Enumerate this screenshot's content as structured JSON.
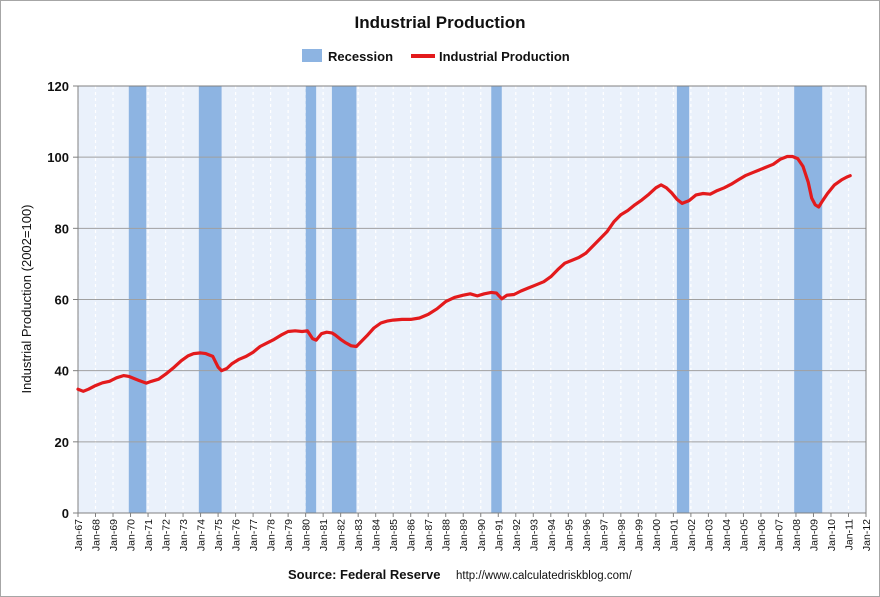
{
  "chart_data": {
    "type": "line",
    "title": "Industrial Production",
    "ylabel": "Industrial Production (2002=100)",
    "source": "Source: Federal Reserve",
    "url": "http://www.calculatedriskblog.com/",
    "ylim": [
      0,
      120
    ],
    "yticks": [
      0,
      20,
      40,
      60,
      80,
      100,
      120
    ],
    "xlim": [
      1967.0,
      2012.0
    ],
    "xticks": [
      "Jan-67",
      "Jan-68",
      "Jan-69",
      "Jan-70",
      "Jan-71",
      "Jan-72",
      "Jan-73",
      "Jan-74",
      "Jan-75",
      "Jan-76",
      "Jan-77",
      "Jan-78",
      "Jan-79",
      "Jan-80",
      "Jan-81",
      "Jan-82",
      "Jan-83",
      "Jan-84",
      "Jan-85",
      "Jan-86",
      "Jan-87",
      "Jan-88",
      "Jan-89",
      "Jan-90",
      "Jan-91",
      "Jan-92",
      "Jan-93",
      "Jan-94",
      "Jan-95",
      "Jan-96",
      "Jan-97",
      "Jan-98",
      "Jan-99",
      "Jan-00",
      "Jan-01",
      "Jan-02",
      "Jan-03",
      "Jan-04",
      "Jan-05",
      "Jan-06",
      "Jan-07",
      "Jan-08",
      "Jan-09",
      "Jan-10",
      "Jan-11",
      "Jan-12"
    ],
    "grid": true,
    "legend": "top-center",
    "colors": {
      "recession": "#8db4e2",
      "line": "#e31a1c",
      "plot_bg": "#eaf1fb"
    },
    "series": [
      {
        "name": "Industrial Production",
        "x": [
          1967.0,
          1967.3,
          1967.6,
          1968.0,
          1968.4,
          1968.8,
          1969.2,
          1969.6,
          1969.9,
          1970.2,
          1970.5,
          1970.9,
          1971.2,
          1971.6,
          1972.0,
          1972.5,
          1972.9,
          1973.3,
          1973.6,
          1974.0,
          1974.3,
          1974.7,
          1975.0,
          1975.2,
          1975.5,
          1975.8,
          1976.2,
          1976.6,
          1977.0,
          1977.4,
          1977.8,
          1978.2,
          1978.6,
          1979.0,
          1979.4,
          1979.8,
          1980.1,
          1980.4,
          1980.6,
          1980.9,
          1981.2,
          1981.5,
          1981.7,
          1982.0,
          1982.3,
          1982.6,
          1982.9,
          1983.1,
          1983.5,
          1983.9,
          1984.3,
          1984.7,
          1985.0,
          1985.5,
          1986.0,
          1986.5,
          1987.0,
          1987.5,
          1988.0,
          1988.5,
          1989.0,
          1989.4,
          1989.8,
          1990.2,
          1990.6,
          1990.9,
          1991.2,
          1991.5,
          1991.9,
          1992.3,
          1992.7,
          1993.1,
          1993.6,
          1994.0,
          1994.4,
          1994.8,
          1995.2,
          1995.6,
          1996.0,
          1996.4,
          1996.8,
          1997.2,
          1997.6,
          1998.0,
          1998.4,
          1998.8,
          1999.2,
          1999.6,
          2000.0,
          2000.3,
          2000.6,
          2000.9,
          2001.2,
          2001.5,
          2001.9,
          2002.3,
          2002.7,
          2003.1,
          2003.5,
          2003.9,
          2004.3,
          2004.7,
          2005.1,
          2005.5,
          2005.9,
          2006.3,
          2006.7,
          2007.1,
          2007.5,
          2007.8,
          2008.1,
          2008.4,
          2008.7,
          2008.9,
          2009.1,
          2009.3,
          2009.5,
          2009.8,
          2010.2,
          2010.6,
          2010.9,
          2011.1
        ],
        "y": [
          34.8,
          34.2,
          34.8,
          35.8,
          36.6,
          37.0,
          38.0,
          38.6,
          38.4,
          37.8,
          37.2,
          36.5,
          37.0,
          37.6,
          39.0,
          41.0,
          42.8,
          44.2,
          44.8,
          45.0,
          44.8,
          44.0,
          41.0,
          40.0,
          40.6,
          42.0,
          43.2,
          44.0,
          45.2,
          46.8,
          47.8,
          48.8,
          50.0,
          51.0,
          51.2,
          51.0,
          51.2,
          49.0,
          48.6,
          50.4,
          50.8,
          50.6,
          50.0,
          48.8,
          47.8,
          47.0,
          46.8,
          47.8,
          49.8,
          52.0,
          53.4,
          54.0,
          54.2,
          54.4,
          54.4,
          54.8,
          55.8,
          57.4,
          59.4,
          60.6,
          61.2,
          61.6,
          61.0,
          61.6,
          62.0,
          61.8,
          60.2,
          61.2,
          61.4,
          62.4,
          63.2,
          64.0,
          65.0,
          66.4,
          68.4,
          70.2,
          71.0,
          71.8,
          73.0,
          75.0,
          77.0,
          79.0,
          81.8,
          83.8,
          85.0,
          86.6,
          88.0,
          89.6,
          91.4,
          92.2,
          91.4,
          90.0,
          88.2,
          87.0,
          87.8,
          89.4,
          89.8,
          89.6,
          90.6,
          91.4,
          92.4,
          93.6,
          94.8,
          95.6,
          96.4,
          97.2,
          98.0,
          99.4,
          100.2,
          100.2,
          99.6,
          97.4,
          93.0,
          88.5,
          86.6,
          86.0,
          87.6,
          89.8,
          92.2,
          93.6,
          94.4,
          94.8
        ]
      }
    ],
    "recessions": [
      {
        "name": "Recession",
        "start": 1969.9,
        "end": 1970.9
      },
      {
        "name": "Recession",
        "start": 1973.9,
        "end": 1975.2
      },
      {
        "name": "Recession",
        "start": 1980.0,
        "end": 1980.6
      },
      {
        "name": "Recession",
        "start": 1981.5,
        "end": 1982.9
      },
      {
        "name": "Recession",
        "start": 1990.6,
        "end": 1991.2
      },
      {
        "name": "Recession",
        "start": 2001.2,
        "end": 2001.9
      },
      {
        "name": "Recession",
        "start": 2007.9,
        "end": 2009.5
      }
    ],
    "legend_items": [
      {
        "label": "Recession",
        "kind": "bar"
      },
      {
        "label": "Industrial Production",
        "kind": "line"
      }
    ]
  }
}
